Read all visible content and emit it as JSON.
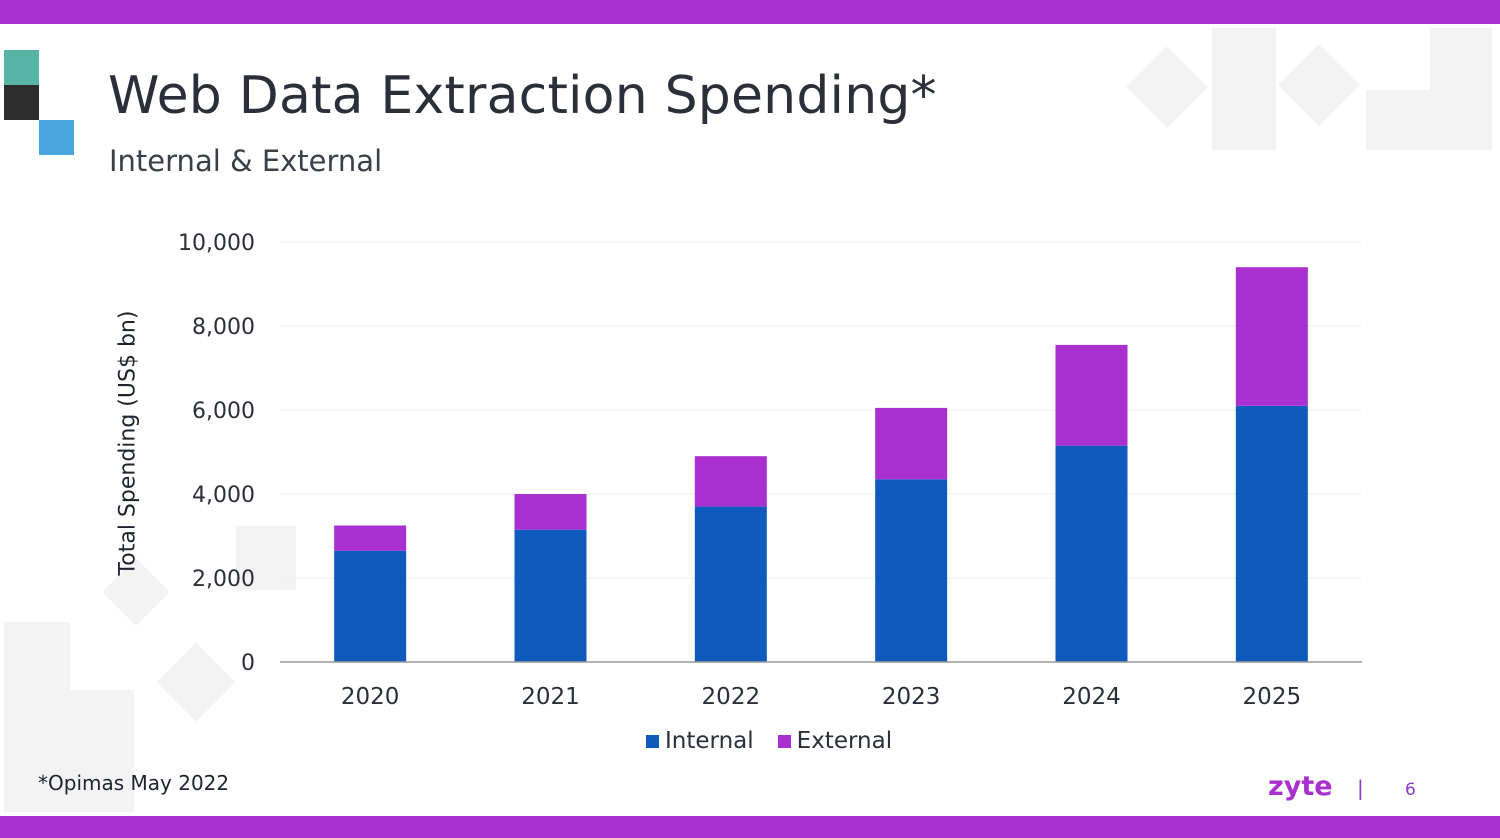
{
  "colors": {
    "accent": "#a92fcf",
    "internal": "#0f5bbd",
    "external": "#a92fcf",
    "logo_teal": "#58b5a6",
    "logo_dark": "#2d2d2d",
    "logo_blue": "#4aa7dd",
    "deco": "#f3f3f3"
  },
  "header": {
    "title": "Web Data Extraction Spending*",
    "subtitle": "Internal & External"
  },
  "chart_data": {
    "type": "bar",
    "stacked": true,
    "title": "Web Data Extraction Spending*",
    "subtitle": "Internal & External",
    "xlabel": "",
    "ylabel": "Total Spending (US$ bn)",
    "categories": [
      "2020",
      "2021",
      "2022",
      "2023",
      "2024",
      "2025"
    ],
    "series": [
      {
        "name": "Internal",
        "values": [
          2650,
          3150,
          3700,
          4350,
          5150,
          6100
        ]
      },
      {
        "name": "External",
        "values": [
          600,
          850,
          1200,
          1700,
          2400,
          3300
        ]
      }
    ],
    "ylim": [
      0,
      10000
    ],
    "yticks": [
      0,
      2000,
      4000,
      6000,
      8000,
      10000
    ],
    "ytick_labels": [
      "0",
      "2,000",
      "4,000",
      "6,000",
      "8,000",
      "10,000"
    ],
    "grid": true,
    "legend": "bottom-center"
  },
  "footer": {
    "footnote": "*Opimas May 2022",
    "brand": "zyte",
    "separator": "|",
    "page_number": "6"
  }
}
